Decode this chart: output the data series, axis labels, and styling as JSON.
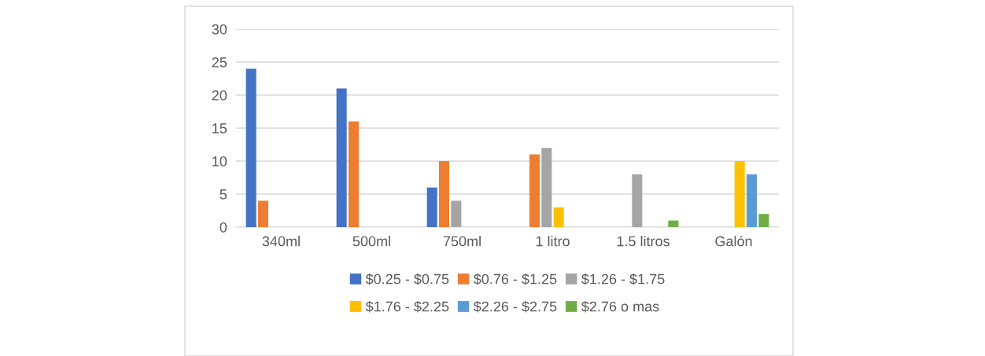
{
  "chart_data": {
    "type": "bar",
    "categories": [
      "340ml",
      "500ml",
      "750ml",
      "1 litro",
      "1.5 litros",
      "Galón"
    ],
    "series": [
      {
        "name": "$0.25 - $0.75",
        "color": "#4472c4",
        "values": [
          24,
          21,
          6,
          null,
          null,
          null
        ]
      },
      {
        "name": "$0.76 - $1.25",
        "color": "#ed7d31",
        "values": [
          4,
          16,
          10,
          11,
          null,
          null
        ]
      },
      {
        "name": "$1.26 - $1.75",
        "color": "#a5a5a5",
        "values": [
          null,
          null,
          4,
          12,
          8,
          null
        ]
      },
      {
        "name": "$1.76 - $2.25",
        "color": "#ffc000",
        "values": [
          null,
          null,
          null,
          3,
          null,
          10
        ]
      },
      {
        "name": "$2.26 - $2.75",
        "color": "#5b9bd5",
        "values": [
          null,
          null,
          null,
          null,
          null,
          8
        ]
      },
      {
        "name": "$2.76 o mas",
        "color": "#70ad47",
        "values": [
          null,
          null,
          null,
          null,
          1,
          2
        ]
      }
    ],
    "ylim": [
      0,
      30
    ],
    "yticks": [
      0,
      5,
      10,
      15,
      20,
      25,
      30
    ],
    "grid": "y",
    "legend": "bottom"
  }
}
